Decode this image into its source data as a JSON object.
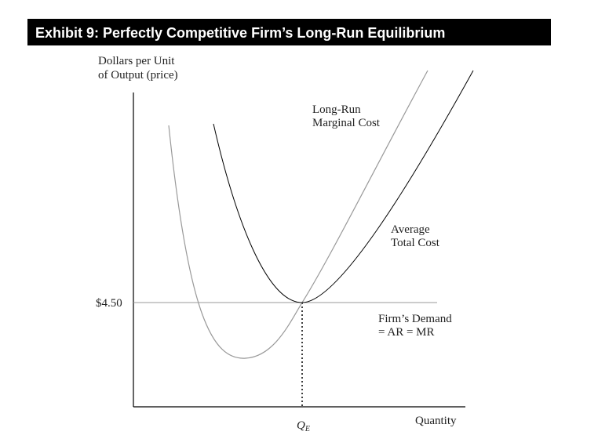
{
  "header": {
    "title": "Exhibit 9: Perfectly Competitive Firm’s Long-Run Equilibrium"
  },
  "axes": {
    "y_label": [
      "Dollars per Unit",
      "of Output (price)"
    ],
    "x_label": "Quantity",
    "price_label": "$4.50",
    "quantity_label": {
      "main": "Q",
      "sub": "E"
    }
  },
  "curves": {
    "marginal_cost": [
      "Long-Run",
      "Marginal Cost"
    ],
    "average_total_cost": [
      "Average",
      "Total Cost"
    ],
    "demand": [
      "Firm’s Demand",
      "= AR = MR"
    ]
  }
}
